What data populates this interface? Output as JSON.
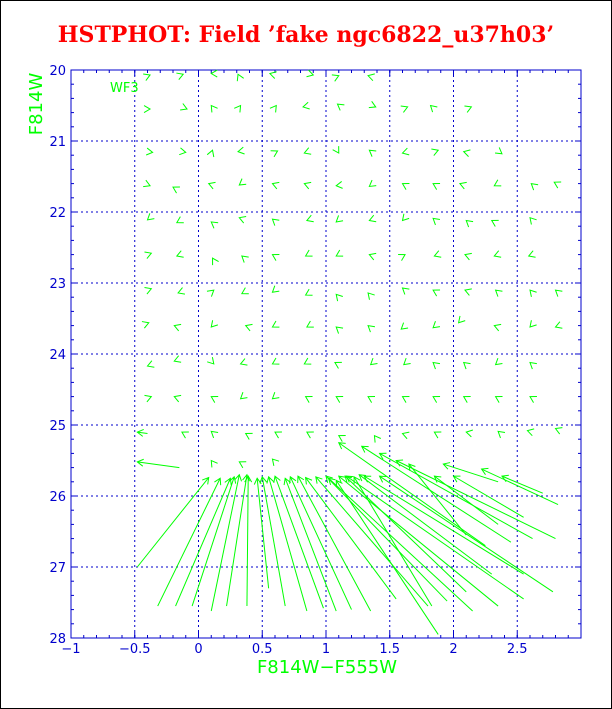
{
  "title": "HSTPHOT: Field ’fake ngc6822_u37h03’",
  "chart_data": {
    "type": "vector",
    "panel_label": "WF3",
    "xlabel": "F814W−F555W",
    "ylabel": "F814W",
    "xlim": [
      -1,
      3.0
    ],
    "ylim": [
      28,
      20
    ],
    "x_ticks": [
      -1,
      -0.5,
      0,
      0.5,
      1,
      1.5,
      2,
      2.5
    ],
    "x_tick_labels": [
      "−1",
      "−0.5",
      "0",
      "0.5",
      "1",
      "1.5",
      "2",
      "2.5"
    ],
    "y_ticks": [
      20,
      21,
      22,
      23,
      24,
      25,
      26,
      27,
      28
    ],
    "y_tick_labels": [
      "20",
      "21",
      "22",
      "23",
      "24",
      "25",
      "26",
      "27",
      "28"
    ],
    "grid": true,
    "colors": {
      "axes": "#0000cc",
      "vectors": "#00ff00",
      "title": "#ff0000"
    },
    "vectors_note": "input (tail) -> recovered (head) positions in data units",
    "vectors": [
      [
        -0.42,
        20.1,
        -0.38,
        20.07
      ],
      [
        -0.15,
        20.08,
        -0.12,
        20.06
      ],
      [
        0.14,
        20.05,
        0.1,
        20.05
      ],
      [
        0.32,
        20.1,
        0.31,
        20.06
      ],
      [
        0.6,
        20.07,
        0.56,
        20.05
      ],
      [
        0.86,
        20.05,
        0.9,
        20.07
      ],
      [
        1.05,
        20.12,
        1.1,
        20.08
      ],
      [
        1.37,
        20.1,
        1.33,
        20.08
      ],
      [
        -0.42,
        20.55,
        -0.38,
        20.55
      ],
      [
        -0.13,
        20.52,
        -0.09,
        20.55
      ],
      [
        0.12,
        20.55,
        0.1,
        20.5
      ],
      [
        0.31,
        20.55,
        0.33,
        20.5
      ],
      [
        0.59,
        20.55,
        0.61,
        20.5
      ],
      [
        0.87,
        20.5,
        0.82,
        20.52
      ],
      [
        1.12,
        20.52,
        1.09,
        20.48
      ],
      [
        1.34,
        20.48,
        1.39,
        20.52
      ],
      [
        1.6,
        20.55,
        1.64,
        20.52
      ],
      [
        1.85,
        20.55,
        1.82,
        20.5
      ],
      [
        2.1,
        20.55,
        2.14,
        20.52
      ],
      [
        -0.4,
        21.15,
        -0.36,
        21.16
      ],
      [
        -0.13,
        21.15,
        -0.1,
        21.16
      ],
      [
        0.1,
        21.18,
        0.11,
        21.13
      ],
      [
        0.34,
        21.14,
        0.31,
        21.15
      ],
      [
        0.59,
        21.17,
        0.62,
        21.14
      ],
      [
        0.86,
        21.15,
        0.83,
        21.17
      ],
      [
        1.09,
        21.14,
        1.1,
        21.17
      ],
      [
        1.37,
        21.17,
        1.34,
        21.13
      ],
      [
        1.64,
        21.15,
        1.6,
        21.17
      ],
      [
        1.85,
        21.15,
        1.88,
        21.13
      ],
      [
        2.12,
        21.17,
        2.08,
        21.15
      ],
      [
        2.35,
        21.14,
        2.38,
        21.18
      ],
      [
        -0.42,
        21.6,
        -0.38,
        21.63
      ],
      [
        -0.17,
        21.68,
        -0.2,
        21.65
      ],
      [
        0.11,
        21.62,
        0.08,
        21.6
      ],
      [
        0.35,
        21.58,
        0.32,
        21.62
      ],
      [
        0.61,
        21.62,
        0.58,
        21.6
      ],
      [
        0.86,
        21.62,
        0.83,
        21.6
      ],
      [
        1.12,
        21.62,
        1.08,
        21.63
      ],
      [
        1.37,
        21.6,
        1.34,
        21.64
      ],
      [
        1.62,
        21.62,
        1.6,
        21.6
      ],
      [
        1.86,
        21.62,
        1.84,
        21.6
      ],
      [
        2.08,
        21.62,
        2.05,
        21.6
      ],
      [
        2.35,
        21.6,
        2.32,
        21.63
      ],
      [
        2.63,
        21.63,
        2.61,
        21.6
      ],
      [
        2.83,
        21.62,
        2.79,
        21.58
      ],
      [
        -0.38,
        22.08,
        -0.4,
        22.11
      ],
      [
        -0.14,
        22.12,
        -0.17,
        22.15
      ],
      [
        0.13,
        22.18,
        0.1,
        22.14
      ],
      [
        0.35,
        22.1,
        0.32,
        22.08
      ],
      [
        0.6,
        22.13,
        0.58,
        22.1
      ],
      [
        0.88,
        22.1,
        0.85,
        22.12
      ],
      [
        1.1,
        22.11,
        1.08,
        22.14
      ],
      [
        1.37,
        22.1,
        1.34,
        22.12
      ],
      [
        1.62,
        22.08,
        1.6,
        22.12
      ],
      [
        1.86,
        22.12,
        1.84,
        22.09
      ],
      [
        2.12,
        22.15,
        2.1,
        22.12
      ],
      [
        2.33,
        22.15,
        2.3,
        22.12
      ],
      [
        2.62,
        22.12,
        2.6,
        22.08
      ],
      [
        -0.4,
        22.6,
        -0.37,
        22.58
      ],
      [
        -0.14,
        22.6,
        -0.17,
        22.62
      ],
      [
        0.12,
        22.68,
        0.11,
        22.65
      ],
      [
        0.36,
        22.65,
        0.34,
        22.62
      ],
      [
        0.6,
        22.62,
        0.58,
        22.6
      ],
      [
        0.86,
        22.6,
        0.84,
        22.62
      ],
      [
        1.1,
        22.6,
        1.08,
        22.62
      ],
      [
        1.37,
        22.62,
        1.34,
        22.6
      ],
      [
        1.6,
        22.62,
        1.62,
        22.6
      ],
      [
        1.88,
        22.6,
        1.85,
        22.62
      ],
      [
        2.12,
        22.62,
        2.09,
        22.6
      ],
      [
        2.35,
        22.6,
        2.32,
        22.62
      ],
      [
        2.62,
        22.6,
        2.59,
        22.62
      ],
      [
        -0.4,
        23.1,
        -0.37,
        23.08
      ],
      [
        -0.13,
        23.12,
        -0.16,
        23.14
      ],
      [
        0.1,
        23.13,
        0.12,
        23.1
      ],
      [
        0.37,
        23.12,
        0.34,
        23.15
      ],
      [
        0.6,
        23.1,
        0.58,
        23.13
      ],
      [
        0.87,
        23.14,
        0.84,
        23.17
      ],
      [
        1.1,
        23.2,
        1.08,
        23.16
      ],
      [
        1.35,
        23.18,
        1.33,
        23.14
      ],
      [
        1.62,
        23.1,
        1.6,
        23.07
      ],
      [
        1.86,
        23.12,
        1.84,
        23.1
      ],
      [
        2.12,
        23.12,
        2.09,
        23.1
      ],
      [
        2.35,
        23.13,
        2.33,
        23.1
      ],
      [
        2.62,
        23.14,
        2.6,
        23.1
      ],
      [
        2.82,
        23.13,
        2.8,
        23.1
      ],
      [
        -0.42,
        23.58,
        -0.39,
        23.56
      ],
      [
        -0.16,
        23.62,
        -0.19,
        23.6
      ],
      [
        0.12,
        23.58,
        0.1,
        23.62
      ],
      [
        0.4,
        23.62,
        0.37,
        23.6
      ],
      [
        0.6,
        23.6,
        0.58,
        23.62
      ],
      [
        0.87,
        23.6,
        0.85,
        23.62
      ],
      [
        1.1,
        23.65,
        1.08,
        23.62
      ],
      [
        1.35,
        23.63,
        1.33,
        23.6
      ],
      [
        1.61,
        23.62,
        1.59,
        23.65
      ],
      [
        1.86,
        23.6,
        1.84,
        23.63
      ],
      [
        2.06,
        23.52,
        2.04,
        23.56
      ],
      [
        2.35,
        23.62,
        2.32,
        23.6
      ],
      [
        2.62,
        23.58,
        2.6,
        23.62
      ],
      [
        2.83,
        23.6,
        2.8,
        23.62
      ],
      [
        -0.37,
        24.15,
        -0.4,
        24.17
      ],
      [
        -0.16,
        24.08,
        -0.19,
        24.1
      ],
      [
        0.1,
        24.1,
        0.12,
        24.14
      ],
      [
        0.36,
        24.12,
        0.33,
        24.14
      ],
      [
        0.6,
        24.12,
        0.58,
        24.14
      ],
      [
        0.85,
        24.12,
        0.83,
        24.14
      ],
      [
        1.1,
        24.15,
        1.07,
        24.12
      ],
      [
        1.37,
        24.12,
        1.35,
        24.15
      ],
      [
        1.63,
        24.12,
        1.61,
        24.15
      ],
      [
        1.86,
        24.15,
        1.84,
        24.12
      ],
      [
        2.1,
        24.15,
        2.08,
        24.12
      ],
      [
        2.35,
        24.12,
        2.33,
        24.15
      ],
      [
        2.62,
        24.15,
        2.6,
        24.12
      ],
      [
        -0.4,
        24.62,
        -0.37,
        24.6
      ],
      [
        -0.16,
        24.62,
        -0.19,
        24.6
      ],
      [
        0.12,
        24.62,
        0.1,
        24.6
      ],
      [
        0.35,
        24.6,
        0.33,
        24.63
      ],
      [
        0.6,
        24.6,
        0.58,
        24.63
      ],
      [
        0.86,
        24.62,
        0.84,
        24.6
      ],
      [
        1.1,
        24.62,
        1.08,
        24.6
      ],
      [
        1.35,
        24.62,
        1.33,
        24.6
      ],
      [
        1.62,
        24.62,
        1.6,
        24.6
      ],
      [
        1.86,
        24.62,
        1.84,
        24.6
      ],
      [
        2.1,
        24.62,
        2.08,
        24.6
      ],
      [
        2.35,
        24.62,
        2.33,
        24.6
      ],
      [
        2.62,
        24.62,
        2.6,
        24.6
      ],
      [
        -0.4,
        25.12,
        -0.48,
        25.1
      ],
      [
        -0.1,
        25.13,
        -0.13,
        25.1
      ],
      [
        0.12,
        25.12,
        0.1,
        25.09
      ],
      [
        0.4,
        25.15,
        0.37,
        25.12
      ],
      [
        0.62,
        25.12,
        0.6,
        25.1
      ],
      [
        0.9,
        25.15,
        0.85,
        25.1
      ],
      [
        1.15,
        25.2,
        1.1,
        25.15
      ],
      [
        1.4,
        25.2,
        1.38,
        25.15
      ],
      [
        1.65,
        25.15,
        1.6,
        25.12
      ],
      [
        1.9,
        25.15,
        1.85,
        25.1
      ],
      [
        2.15,
        25.12,
        2.1,
        25.1
      ],
      [
        2.37,
        25.12,
        2.35,
        25.09
      ],
      [
        2.62,
        25.1,
        2.58,
        25.08
      ],
      [
        2.84,
        25.08,
        2.8,
        25.05
      ],
      [
        -0.15,
        25.6,
        -0.48,
        25.52
      ],
      [
        0.12,
        25.55,
        0.1,
        25.5
      ],
      [
        0.35,
        25.55,
        0.32,
        25.52
      ],
      [
        0.6,
        25.52,
        0.58,
        25.48
      ],
      [
        -0.48,
        27.0,
        0.08,
        25.74
      ],
      [
        -0.32,
        27.55,
        0.17,
        25.75
      ],
      [
        -0.18,
        27.55,
        0.25,
        25.75
      ],
      [
        -0.05,
        27.55,
        0.28,
        25.73
      ],
      [
        0.1,
        27.62,
        0.32,
        25.7
      ],
      [
        0.22,
        27.55,
        0.38,
        25.7
      ],
      [
        0.38,
        27.55,
        0.39,
        25.72
      ],
      [
        0.55,
        27.3,
        0.46,
        25.75
      ],
      [
        0.68,
        27.55,
        0.5,
        25.73
      ],
      [
        0.85,
        27.62,
        0.55,
        25.73
      ],
      [
        0.98,
        27.58,
        0.6,
        25.72
      ],
      [
        1.08,
        27.62,
        0.68,
        25.75
      ],
      [
        1.2,
        27.6,
        0.72,
        25.73
      ],
      [
        1.35,
        27.62,
        0.78,
        25.72
      ],
      [
        1.55,
        27.45,
        0.84,
        25.74
      ],
      [
        1.8,
        27.55,
        0.92,
        25.73
      ],
      [
        1.95,
        27.48,
        1.0,
        25.72
      ],
      [
        2.15,
        27.62,
        1.02,
        25.75
      ],
      [
        2.35,
        27.55,
        1.1,
        25.72
      ],
      [
        2.55,
        27.45,
        1.16,
        25.72
      ],
      [
        1.83,
        27.55,
        1.22,
        25.73
      ],
      [
        2.3,
        27.1,
        1.26,
        25.7
      ],
      [
        1.88,
        27.95,
        1.08,
        25.78
      ],
      [
        2.1,
        27.35,
        1.15,
        25.72
      ],
      [
        2.55,
        27.1,
        1.3,
        25.72
      ],
      [
        2.78,
        27.35,
        1.42,
        25.72
      ],
      [
        2.25,
        26.7,
        1.1,
        25.25
      ],
      [
        2.45,
        26.65,
        1.28,
        25.3
      ],
      [
        2.62,
        26.6,
        1.42,
        25.4
      ],
      [
        2.8,
        26.6,
        1.55,
        25.5
      ],
      [
        2.1,
        26.55,
        1.65,
        25.55
      ],
      [
        2.35,
        26.4,
        1.85,
        25.72
      ],
      [
        2.55,
        26.3,
        2.0,
        25.72
      ],
      [
        2.82,
        26.12,
        2.22,
        25.62
      ],
      [
        2.7,
        25.96,
        2.38,
        25.72
      ],
      [
        2.35,
        25.8,
        1.92,
        25.55
      ]
    ]
  }
}
